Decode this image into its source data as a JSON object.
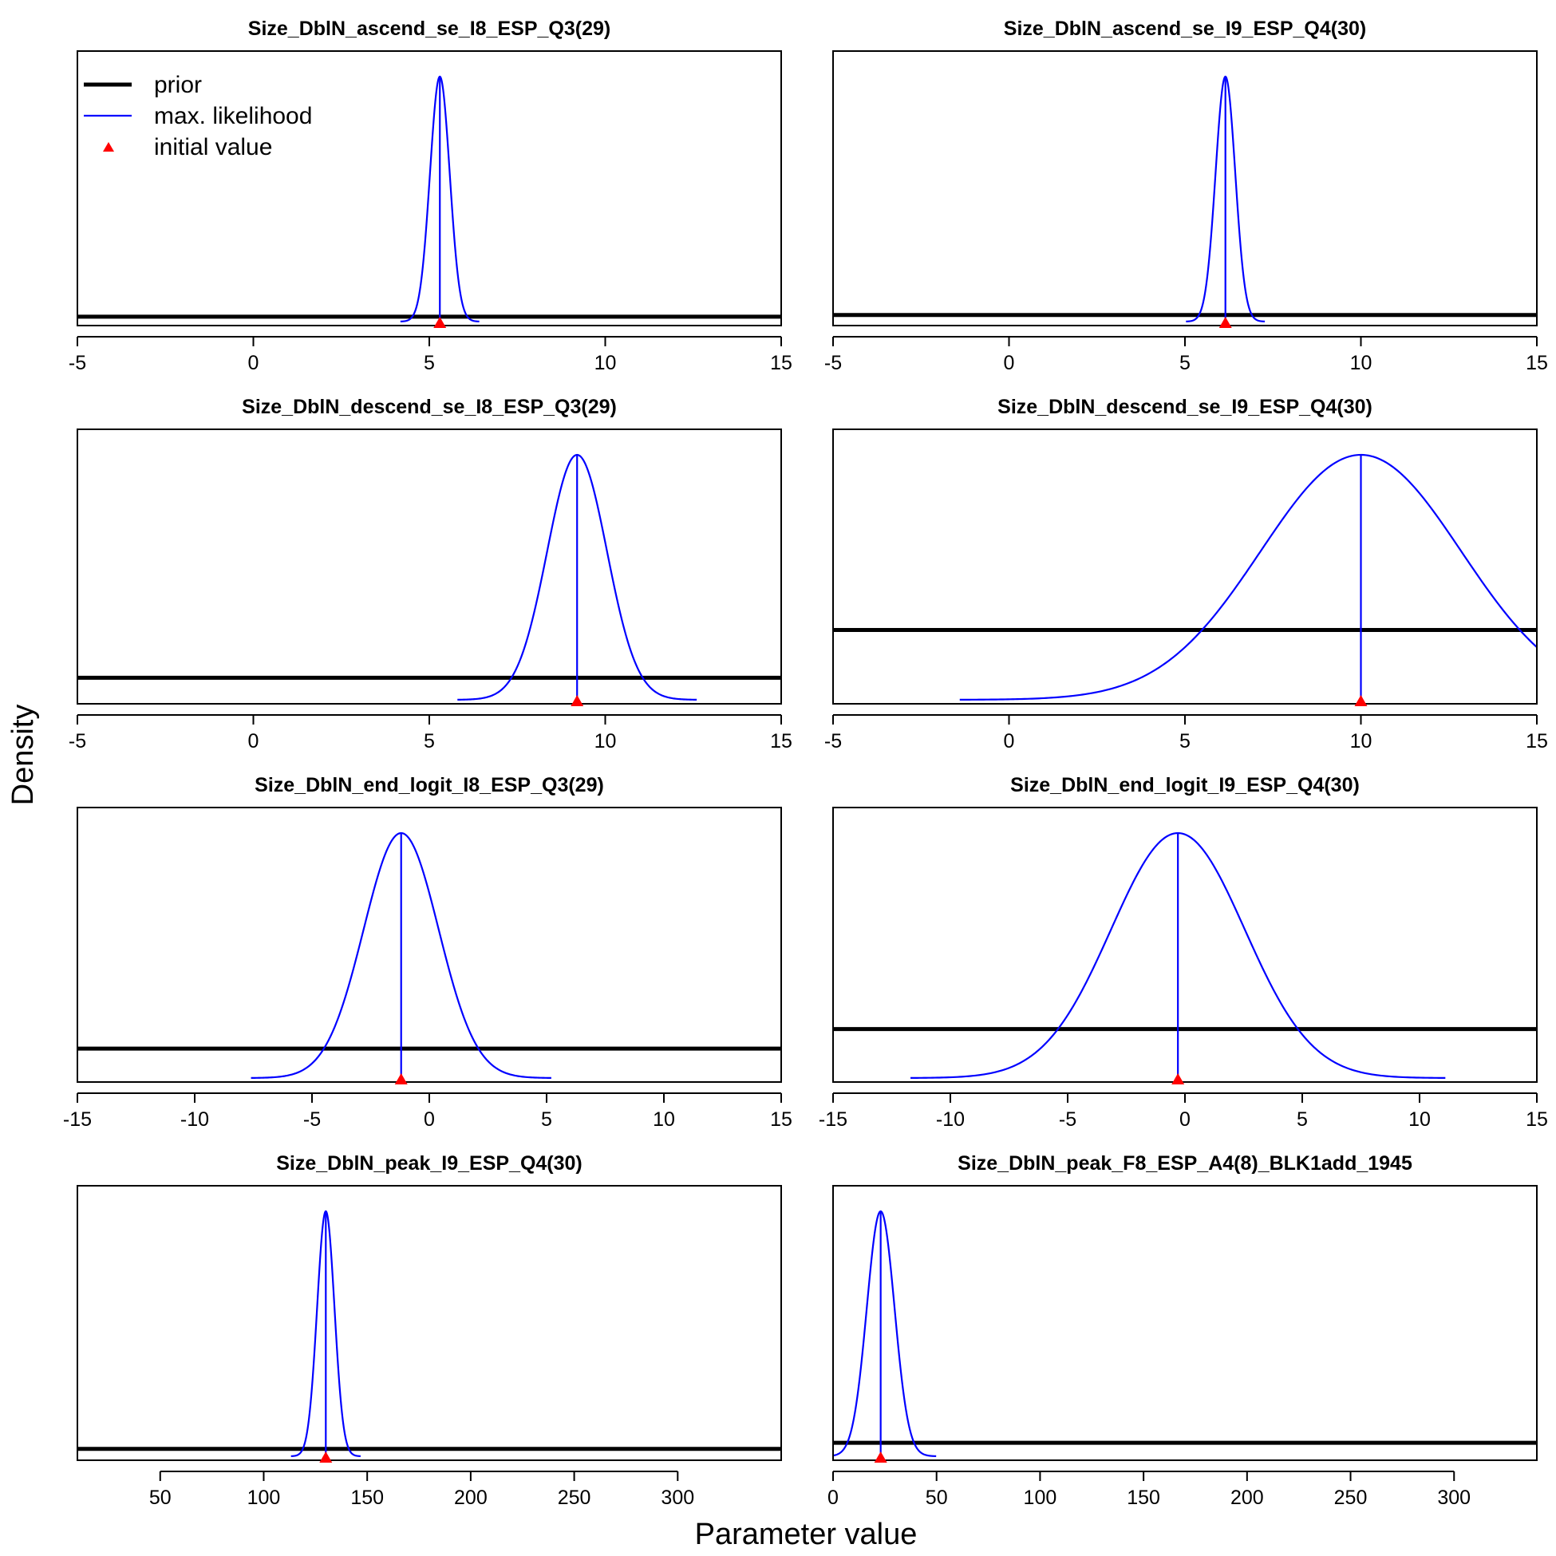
{
  "xlabel": "Parameter value",
  "ylabel": "Density",
  "legend": {
    "placement": "top-left of first panel",
    "items": [
      {
        "label": "prior",
        "style": "thick-black-line"
      },
      {
        "label": "max. likelihood",
        "style": "thin-blue-line"
      },
      {
        "label": "initial value",
        "style": "red-triangle"
      }
    ]
  },
  "colors": {
    "prior": "#000000",
    "mle": "#0000ff",
    "initial": "#ff0000"
  },
  "chart_data": [
    {
      "type": "line",
      "title": "Size_DblN_ascend_se_I8_ESP_Q3(29)",
      "xlim": [
        -5,
        15
      ],
      "ticks": [
        -5,
        0,
        5,
        10,
        15
      ],
      "mle": 5.3,
      "sd": 0.28,
      "prior_level": 0.02,
      "initial": 5.3
    },
    {
      "type": "line",
      "title": "Size_DblN_ascend_se_I9_ESP_Q4(30)",
      "xlim": [
        -5,
        15
      ],
      "ticks": [
        -5,
        0,
        5,
        10,
        15
      ],
      "mle": 6.15,
      "sd": 0.28,
      "prior_level": 0.027,
      "initial": 6.15
    },
    {
      "type": "line",
      "title": "Size_DblN_descend_se_I8_ESP_Q3(29)",
      "xlim": [
        -5,
        15
      ],
      "ticks": [
        -5,
        0,
        5,
        10,
        15
      ],
      "mle": 9.2,
      "sd": 0.85,
      "prior_level": 0.09,
      "initial": 9.2
    },
    {
      "type": "line",
      "title": "Size_DblN_descend_se_I9_ESP_Q4(30)",
      "xlim": [
        -5,
        15
      ],
      "ticks": [
        -5,
        0,
        5,
        10,
        15
      ],
      "mle": 10.0,
      "sd": 2.85,
      "prior_level": 0.285,
      "initial": 10.0
    },
    {
      "type": "line",
      "title": "Size_DblN_end_logit_I8_ESP_Q3(29)",
      "xlim": [
        -15,
        15
      ],
      "ticks": [
        -15,
        -10,
        -5,
        0,
        5,
        10,
        15
      ],
      "mle": -1.2,
      "sd": 1.6,
      "prior_level": 0.12,
      "initial": -1.2
    },
    {
      "type": "line",
      "title": "Size_DblN_end_logit_I9_ESP_Q4(30)",
      "xlim": [
        -15,
        15
      ],
      "ticks": [
        -15,
        -10,
        -5,
        0,
        5,
        10,
        15
      ],
      "mle": -0.3,
      "sd": 2.85,
      "prior_level": 0.2,
      "initial": -0.3
    },
    {
      "type": "line",
      "title": "Size_DblN_peak_I9_ESP_Q4(30)",
      "xlim": [
        10,
        350
      ],
      "ticks": [
        50,
        100,
        150,
        200,
        250,
        300
      ],
      "mle": 130.0,
      "sd": 4.2,
      "prior_level": 0.03,
      "initial": 130.0
    },
    {
      "type": "line",
      "title": "Size_DblN_peak_F8_ESP_A4(8)_BLK1add_1945",
      "xlim": [
        0,
        340
      ],
      "ticks": [
        0,
        50,
        100,
        150,
        200,
        250,
        300
      ],
      "mle": 23.0,
      "sd": 6.7,
      "prior_level": 0.055,
      "initial": 23.0
    }
  ]
}
